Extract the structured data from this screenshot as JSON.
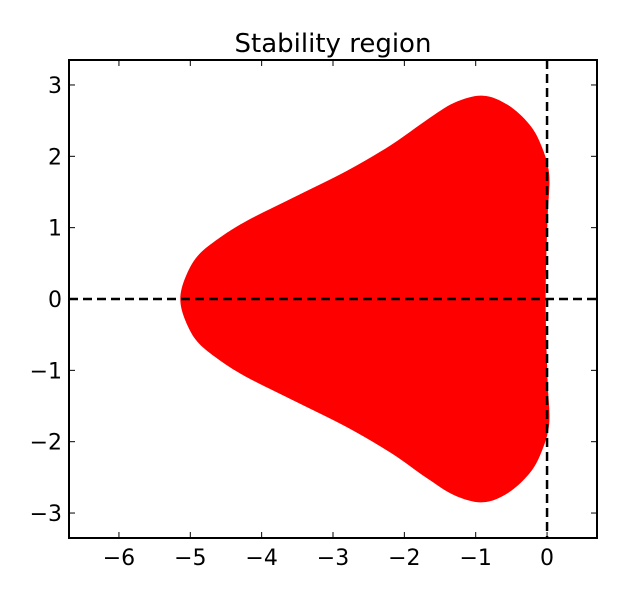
{
  "chart_data": {
    "type": "area",
    "title": "Stability region",
    "xlabel": "",
    "ylabel": "",
    "xlim": [
      -6.7,
      0.7
    ],
    "ylim": [
      -3.35,
      3.35
    ],
    "xticks": [
      {
        "value": -6,
        "label": "−6"
      },
      {
        "value": -5,
        "label": "−5"
      },
      {
        "value": -4,
        "label": "−4"
      },
      {
        "value": -3,
        "label": "−3"
      },
      {
        "value": -2,
        "label": "−2"
      },
      {
        "value": -1,
        "label": "−1"
      },
      {
        "value": 0,
        "label": "0"
      }
    ],
    "yticks": [
      {
        "value": 3,
        "label": "3"
      },
      {
        "value": 2,
        "label": "2"
      },
      {
        "value": 1,
        "label": "1"
      },
      {
        "value": 0,
        "label": "0"
      },
      {
        "value": -1,
        "label": "−1"
      },
      {
        "value": -2,
        "label": "−2"
      },
      {
        "value": -3,
        "label": "−3"
      }
    ],
    "grid": false,
    "fill_color": "#ff0000",
    "reference_lines": [
      {
        "orientation": "horizontal",
        "value": 0,
        "style": "dashed",
        "color": "#000000"
      },
      {
        "orientation": "vertical",
        "value": 0,
        "style": "dashed",
        "color": "#000000"
      }
    ],
    "region_boundary": [
      {
        "x": -5.14,
        "y": 0.0
      },
      {
        "x": -5.07,
        "y": 0.3
      },
      {
        "x": -4.9,
        "y": 0.6
      },
      {
        "x": -4.6,
        "y": 0.85
      },
      {
        "x": -4.2,
        "y": 1.1
      },
      {
        "x": -3.5,
        "y": 1.45
      },
      {
        "x": -2.8,
        "y": 1.8
      },
      {
        "x": -2.2,
        "y": 2.15
      },
      {
        "x": -1.7,
        "y": 2.5
      },
      {
        "x": -1.3,
        "y": 2.75
      },
      {
        "x": -0.9,
        "y": 2.85
      },
      {
        "x": -0.55,
        "y": 2.72
      },
      {
        "x": -0.25,
        "y": 2.45
      },
      {
        "x": -0.08,
        "y": 2.15
      },
      {
        "x": 0.03,
        "y": 1.75
      },
      {
        "x": 0.01,
        "y": 1.2
      },
      {
        "x": -0.01,
        "y": 0.6
      },
      {
        "x": -0.02,
        "y": 0.0
      },
      {
        "x": -0.01,
        "y": -0.6
      },
      {
        "x": 0.01,
        "y": -1.2
      },
      {
        "x": 0.03,
        "y": -1.75
      },
      {
        "x": -0.08,
        "y": -2.15
      },
      {
        "x": -0.25,
        "y": -2.45
      },
      {
        "x": -0.55,
        "y": -2.72
      },
      {
        "x": -0.9,
        "y": -2.85
      },
      {
        "x": -1.3,
        "y": -2.75
      },
      {
        "x": -1.7,
        "y": -2.5
      },
      {
        "x": -2.2,
        "y": -2.15
      },
      {
        "x": -2.8,
        "y": -1.8
      },
      {
        "x": -3.5,
        "y": -1.45
      },
      {
        "x": -4.2,
        "y": -1.1
      },
      {
        "x": -4.6,
        "y": -0.85
      },
      {
        "x": -4.9,
        "y": -0.6
      },
      {
        "x": -5.07,
        "y": -0.3
      }
    ]
  }
}
